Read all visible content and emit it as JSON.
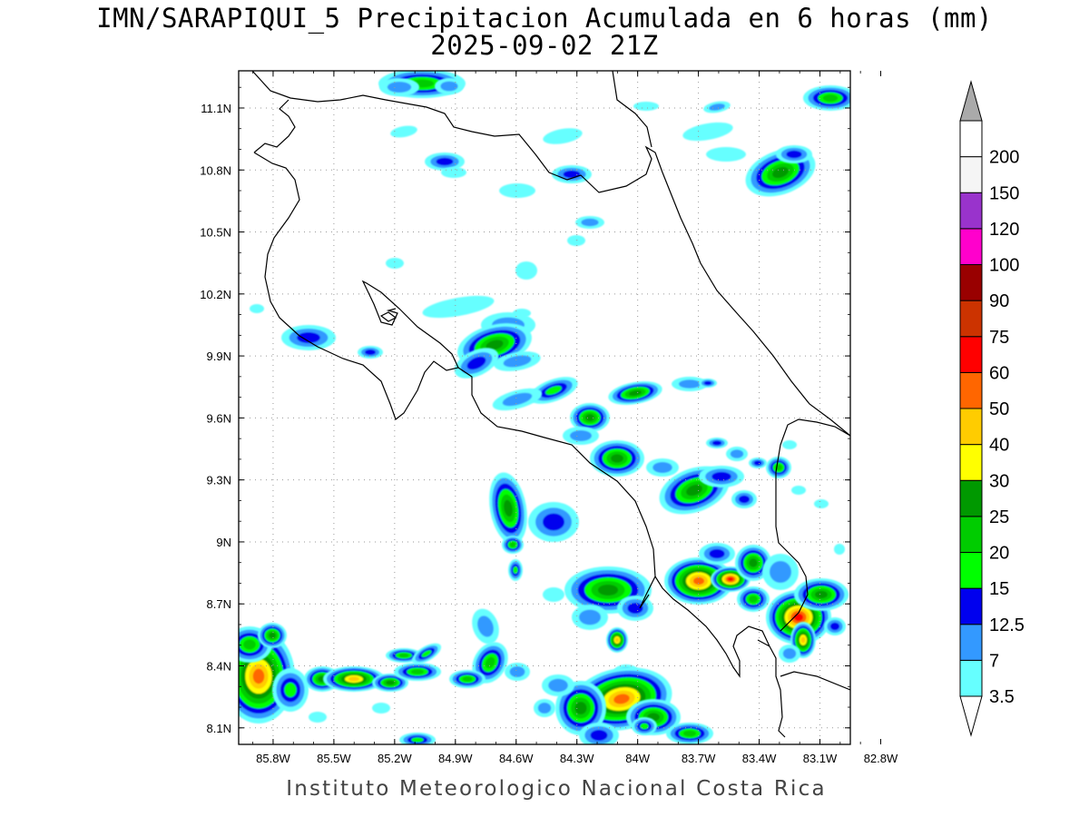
{
  "title_line1": "IMN/SARAPIQUI_5 Precipitacion Acumulada en 6 horas (mm)",
  "title_line2": "2025-09-02 21Z",
  "credit": "Instituto Meteorologico Nacional Costa Rica",
  "chart_data": {
    "type": "heatmap",
    "title": "IMN/SARAPIQUI_5 Precipitacion Acumulada en 6 horas (mm)",
    "subtitle": "2025-09-02 21Z",
    "x_ticks": [
      "85.8W",
      "85.5W",
      "85.2W",
      "84.9W",
      "84.6W",
      "84.3W",
      "84W",
      "83.7W",
      "83.4W",
      "83.1W",
      "82.8W"
    ],
    "x_tick_values": [
      -85.8,
      -85.5,
      -85.2,
      -84.9,
      -84.6,
      -84.3,
      -84.0,
      -83.7,
      -83.4,
      -83.1,
      -82.8
    ],
    "y_ticks": [
      "11.1N",
      "10.8N",
      "10.5N",
      "10.2N",
      "9.9N",
      "9.6N",
      "9.3N",
      "9N",
      "8.7N",
      "8.4N",
      "8.1N"
    ],
    "y_tick_values": [
      11.1,
      10.8,
      10.5,
      10.2,
      9.9,
      9.6,
      9.3,
      9.0,
      8.7,
      8.4,
      8.1
    ],
    "xlim": [
      -85.97,
      -82.95
    ],
    "ylim": [
      8.02,
      11.28
    ],
    "grid": true,
    "legend": {
      "placement": "right",
      "levels": [
        "3.5",
        "7",
        "12.5",
        "15",
        "20",
        "25",
        "30",
        "40",
        "50",
        "60",
        "75",
        "90",
        "100",
        "120",
        "150",
        "200"
      ],
      "colors": [
        "#66ffff",
        "#3399ff",
        "#0000ee",
        "#00ff00",
        "#00cc00",
        "#009900",
        "#ffff00",
        "#ffcc00",
        "#ff6600",
        "#ff0000",
        "#cc3300",
        "#990000",
        "#ff00cc",
        "#9933cc",
        "#f5f5f5",
        "#aaaaaa"
      ]
    }
  }
}
